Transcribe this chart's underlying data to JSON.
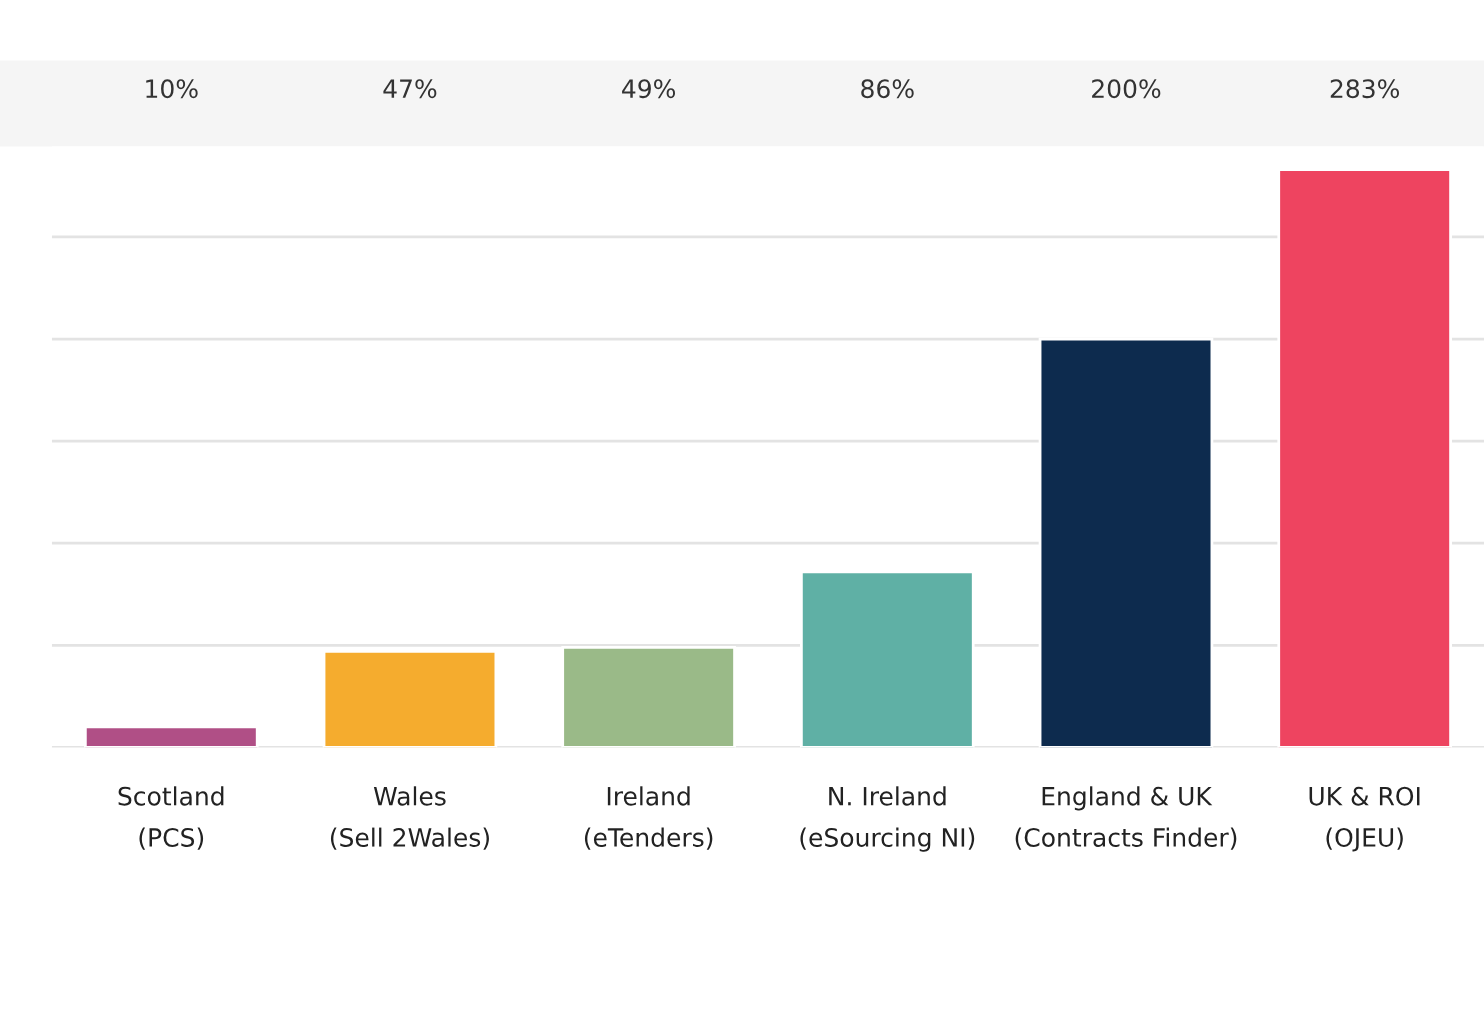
{
  "chart_data": {
    "type": "bar",
    "categories": [
      "Scotland\n(PCS)",
      "Wales\n(Sell 2Wales)",
      "Ireland\n(eTenders)",
      "N. Ireland\n(eSourcing NI)",
      "England & UK\n(Contracts Finder)",
      "UK & ROI\n(OJEU)"
    ],
    "values": [
      10,
      47,
      49,
      86,
      200,
      283
    ],
    "value_labels": [
      "10%",
      "47%",
      "49%",
      "86%",
      "200%",
      "283%"
    ],
    "colors": [
      "#b04f86",
      "#f5ac2e",
      "#9aba88",
      "#5fb0a5",
      "#0d2b4e",
      "#ee4460"
    ],
    "grid": "y",
    "tick_labels": "x"
  }
}
